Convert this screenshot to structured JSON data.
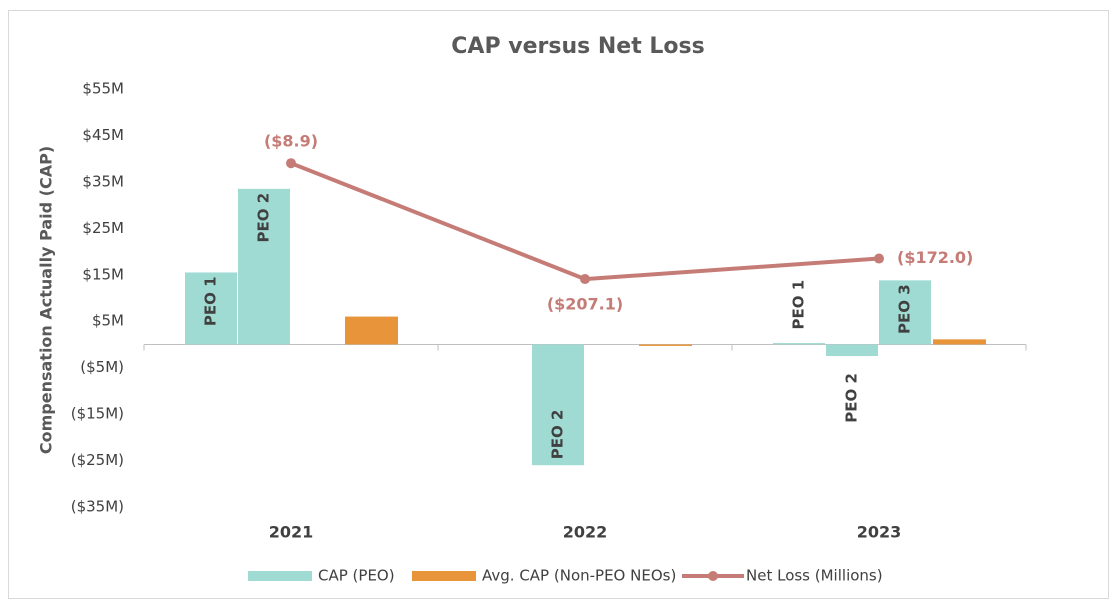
{
  "chart_data": {
    "type": "bar",
    "title": "CAP versus Net Loss",
    "y_axis_label": "Compensation Actually Paid (CAP)",
    "categories": [
      "2021",
      "2022",
      "2023"
    ],
    "series": [
      {
        "name": "CAP (PEO)",
        "color": "#9fdad3",
        "values": [
          [
            15.5,
            33.5,
            null
          ],
          [
            null,
            -26,
            null
          ],
          [
            0.3,
            -2.5,
            13.8
          ]
        ],
        "bar_labels": [
          [
            "PEO 1",
            "PEO 2",
            null
          ],
          [
            null,
            "PEO 2",
            null
          ],
          [
            "PEO 1",
            "PEO 2",
            "PEO 3"
          ]
        ]
      },
      {
        "name": "Avg. CAP (Non-PEO NEOs)",
        "color": "#e8943a",
        "values": [
          6.0,
          -0.3,
          1.1
        ]
      },
      {
        "name": "Net Loss (Millions)",
        "type": "line",
        "axis": "y2",
        "color": "#c57b76",
        "values": [
          -8.9,
          -207.1,
          -172.0
        ],
        "value_labels": [
          "($8.9)",
          "($207.1)",
          "($172.0)"
        ]
      }
    ],
    "ylim": [
      -35,
      55
    ],
    "yticks": [
      {
        "value": 55,
        "label": "$55M"
      },
      {
        "value": 45,
        "label": "$45M"
      },
      {
        "value": 35,
        "label": "$35M"
      },
      {
        "value": 25,
        "label": "$25M"
      },
      {
        "value": 15,
        "label": "$15M"
      },
      {
        "value": 5,
        "label": "$5M"
      },
      {
        "value": -5,
        "label": "($5M)"
      },
      {
        "value": -15,
        "label": "($15M)"
      },
      {
        "value": -25,
        "label": "($25M)"
      },
      {
        "value": -35,
        "label": "($35M)"
      }
    ],
    "y2lim": [
      -597,
      118
    ],
    "legend": "bottom"
  }
}
